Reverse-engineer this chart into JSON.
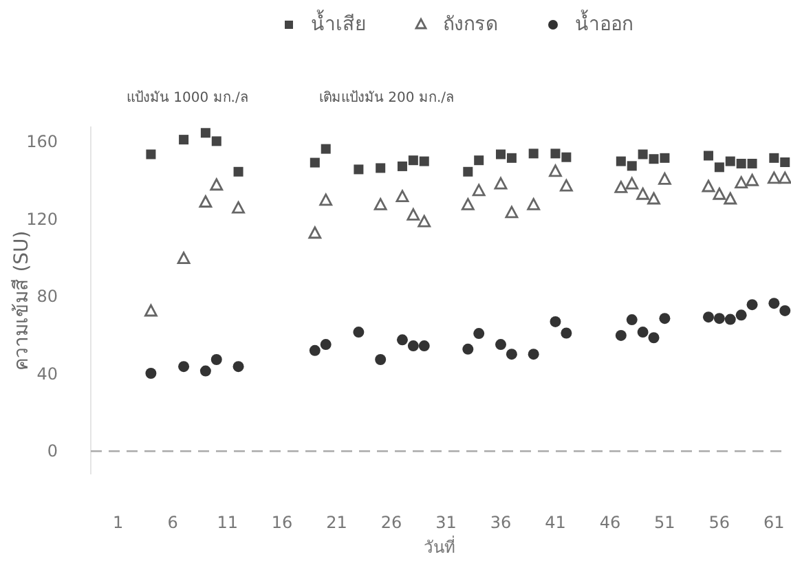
{
  "chart_data": {
    "type": "scatter",
    "xlabel": "วันที่",
    "ylabel": "ความเข้มสี (SU)",
    "annotations": [
      "แป้งมัน 1000 มก./ล",
      "เติมแป้งมัน 200 มก./ล"
    ],
    "xlim": [
      -1.5,
      62.3
    ],
    "ylim": [
      -12,
      168
    ],
    "xticks": [
      1,
      6,
      11,
      16,
      21,
      26,
      31,
      36,
      41,
      46,
      51,
      56,
      61
    ],
    "yticks": [
      0,
      40,
      80,
      120,
      160
    ],
    "grid": false,
    "legend": "top",
    "ref_lines": [
      {
        "axis": "y",
        "value": 0,
        "color": "#aaaaaa",
        "line_style": "dashed"
      }
    ],
    "series": [
      {
        "name": "น้ำเสีย",
        "color": "#444444",
        "marker": "square",
        "x": [
          4,
          7,
          9,
          10,
          12,
          19,
          20,
          23,
          25,
          27,
          28,
          29,
          33,
          34,
          36,
          37,
          39,
          41,
          42,
          47,
          48,
          49,
          50,
          51,
          55,
          56,
          57,
          58,
          59,
          61,
          62
        ],
        "values": [
          153.6,
          161.2,
          164.7,
          160.4,
          144.6,
          149.3,
          156.4,
          145.8,
          146.5,
          147.4,
          150.5,
          150,
          144.6,
          150.5,
          153.6,
          151.7,
          154,
          154,
          152.1,
          150,
          147.6,
          153.6,
          151.2,
          151.7,
          152.9,
          146.9,
          150,
          148.8,
          148.8,
          151.7,
          149.5
        ]
      },
      {
        "name": "ถังกรด",
        "color": "#666666",
        "marker": "triangle",
        "x": [
          4,
          7,
          9,
          10,
          12,
          19,
          20,
          25,
          27,
          28,
          29,
          33,
          34,
          36,
          37,
          39,
          41,
          42,
          47,
          48,
          49,
          50,
          51,
          55,
          56,
          57,
          58,
          59,
          61,
          62
        ],
        "values": [
          72.3,
          99.5,
          128.7,
          137.5,
          125.6,
          112.6,
          129.6,
          127.3,
          131.5,
          122,
          118.5,
          127.3,
          134.6,
          138.1,
          123.2,
          127.3,
          144.6,
          137,
          136.2,
          138.1,
          132.7,
          130.3,
          140.5,
          136.7,
          132.7,
          130.3,
          138.6,
          139.8,
          141,
          141
        ]
      },
      {
        "name": "น้ำออก",
        "color": "#333333",
        "marker": "circle",
        "x": [
          4,
          7,
          9,
          10,
          12,
          19,
          20,
          23,
          25,
          27,
          28,
          29,
          33,
          34,
          36,
          37,
          39,
          41,
          42,
          47,
          48,
          49,
          50,
          51,
          55,
          56,
          57,
          58,
          59,
          61,
          62
        ],
        "values": [
          40.3,
          43.8,
          41.5,
          47.4,
          43.8,
          52.1,
          55.2,
          61.6,
          47.4,
          57.6,
          54.5,
          54.5,
          52.8,
          60.9,
          55.2,
          50.2,
          50.2,
          67,
          61.1,
          59.9,
          68,
          61.6,
          58.7,
          68.7,
          69.4,
          68.7,
          68.2,
          70.4,
          75.8,
          76.5,
          72.7
        ]
      }
    ]
  }
}
